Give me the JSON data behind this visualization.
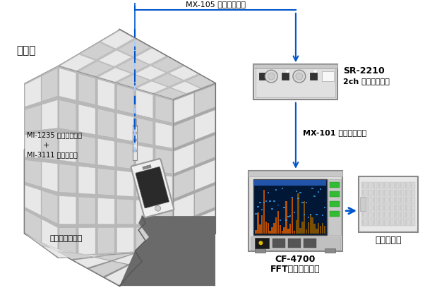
{
  "bg_color": "#ffffff",
  "arrow_color": "#0055cc",
  "anechoic_label": "無響箱",
  "cable1_label": "MX-105 信号ケーブル",
  "cable2_label": "MX-101 信号ケーブル",
  "sr2210_label1": "SR-2210",
  "sr2210_label2": "2ch センサアンプ",
  "cf4700_label1": "CF-4700",
  "cf4700_label2": "FFTコンパレータ",
  "sequencer_label": "シーケンサ",
  "mic_label1": "MI-1235 マイクロホン",
  "mic_label2": "+",
  "mic_label3": "MI-3111 プリアンプ",
  "phone_label": "スマートフォン",
  "hex_dark": "#7a7a7a",
  "hex_mid": "#9a9a9a",
  "hex_light_inner": "#e0e0e0",
  "foam_light": "#f0f0f0",
  "foam_dark": "#c8c8c8"
}
